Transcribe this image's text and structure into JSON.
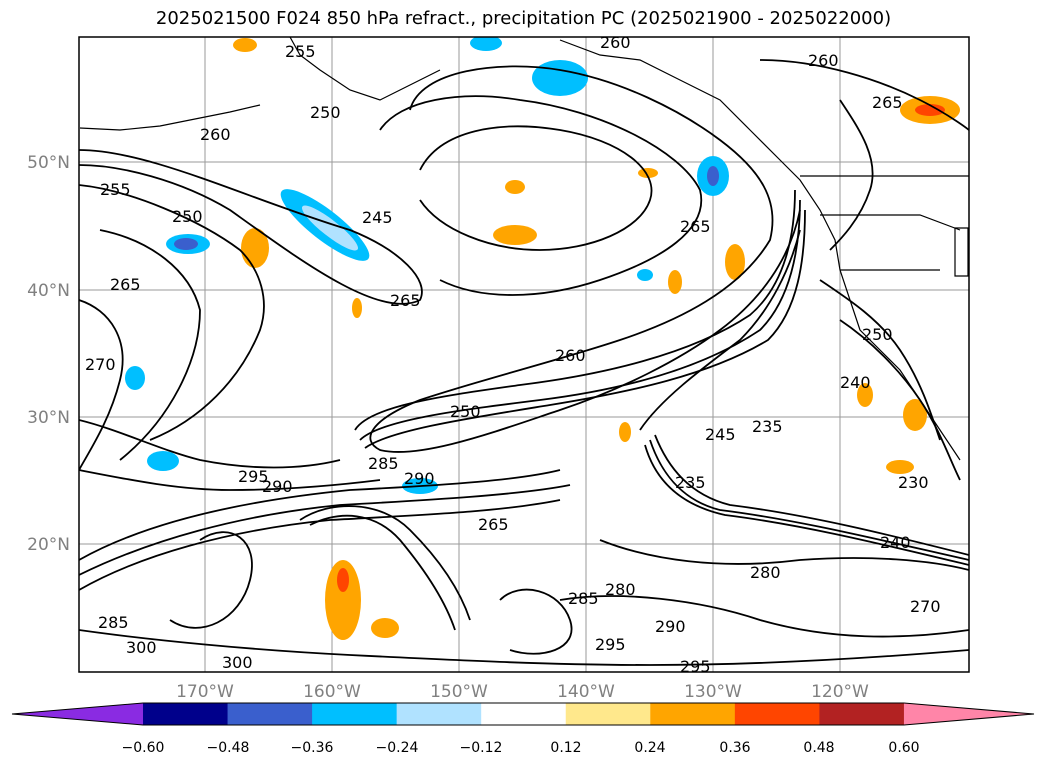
{
  "title": "2025021500 F024 850 hPa refract., precipitation PC (2025021900 - 2025022000)",
  "map": {
    "lat_labels": [
      "50°N",
      "40°N",
      "30°N",
      "20°N"
    ],
    "lon_labels": [
      "170°W",
      "160°W",
      "150°W",
      "140°W",
      "130°W",
      "120°W"
    ],
    "contour_labels": [
      "260",
      "255",
      "250",
      "245",
      "265",
      "270",
      "280",
      "285",
      "290",
      "295",
      "300",
      "240",
      "235",
      "230"
    ]
  },
  "colorbar": {
    "ticks": [
      "−0.60",
      "−0.48",
      "−0.36",
      "−0.24",
      "−0.12",
      "0.12",
      "0.24",
      "0.36",
      "0.48",
      "0.60"
    ],
    "colors": [
      "#8a2be2",
      "#00008b",
      "#3a5fcd",
      "#00bfff",
      "#b0e2ff",
      "#ffffff",
      "#ffe88c",
      "#ffa500",
      "#ff4500",
      "#b22222",
      "#ff85a8",
      "#ff85a8"
    ]
  }
}
